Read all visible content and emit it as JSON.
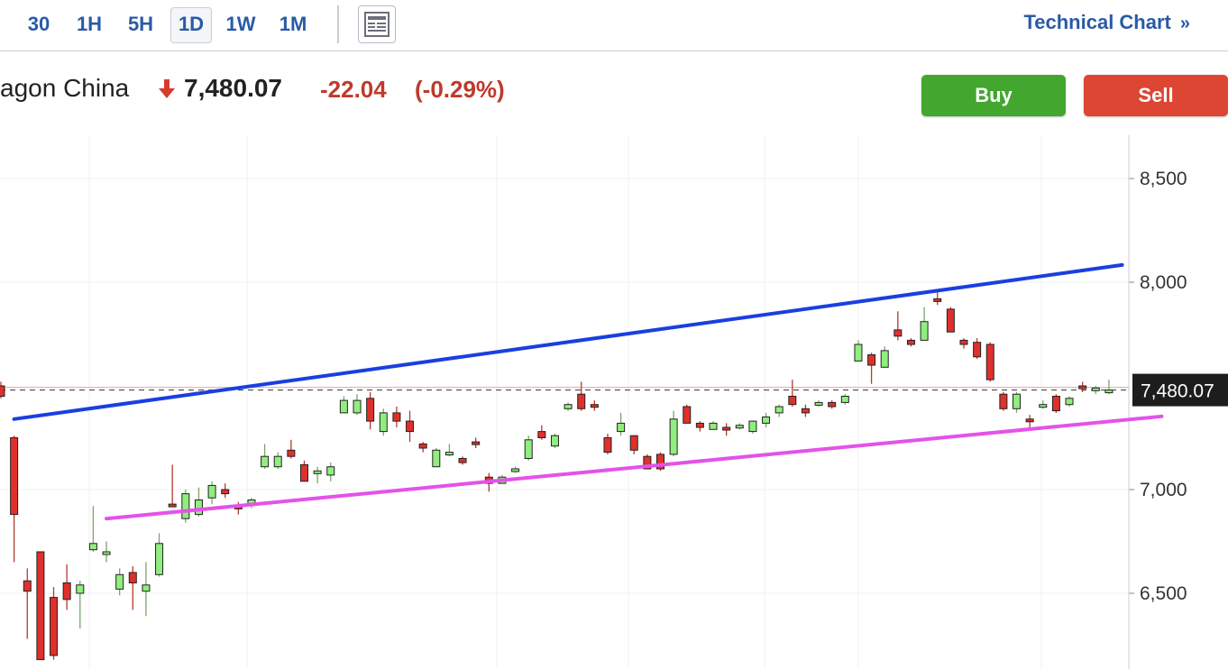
{
  "toolbar": {
    "timeframes": [
      "30",
      "1H",
      "5H",
      "1D",
      "1W",
      "1M"
    ],
    "active_timeframe": "1D",
    "technical_chart_label": "Technical Chart",
    "technical_chart_chevron": "»"
  },
  "quote": {
    "name": "agon China",
    "direction_icon": "arrow-down-icon",
    "price": "7,480.07",
    "change": "-22.04",
    "change_pct": "(-0.29%)"
  },
  "actions": {
    "buy_label": "Buy",
    "sell_label": "Sell"
  },
  "colors": {
    "up_candle": "#90ee7e",
    "down_candle": "#e0302c",
    "upper_trendline": "#1a3fe0",
    "lower_trendline": "#e452e8",
    "link_blue": "#2a5aa6",
    "negative": "#c0392b",
    "buy": "#43a62e",
    "sell": "#dd4633"
  },
  "chart_data": {
    "type": "candlestick",
    "current_price_label": "7,480.07",
    "current_price": 7480.07,
    "y_ticks": [
      "8,500",
      "8,000",
      "7,000",
      "6,500"
    ],
    "y_tick_values": [
      8500,
      8000,
      7000,
      6500
    ],
    "ylim": [
      6180,
      8690
    ],
    "grid": true,
    "candles": [
      [
        7500,
        7450,
        7520,
        7440
      ],
      [
        7250,
        6880,
        7260,
        6650
      ],
      [
        6560,
        6510,
        6620,
        6280
      ],
      [
        6700,
        6180,
        6700,
        6180
      ],
      [
        6480,
        6200,
        6530,
        6180
      ],
      [
        6550,
        6470,
        6640,
        6420
      ],
      [
        6500,
        6540,
        6560,
        6330
      ],
      [
        6710,
        6740,
        6920,
        6700
      ],
      [
        6690,
        6700,
        6750,
        6650
      ],
      [
        6520,
        6590,
        6620,
        6490
      ],
      [
        6600,
        6550,
        6630,
        6420
      ],
      [
        6510,
        6540,
        6650,
        6390
      ],
      [
        6590,
        6740,
        6790,
        6580
      ],
      [
        6930,
        6920,
        7120,
        6930
      ],
      [
        6860,
        6980,
        7000,
        6840
      ],
      [
        6880,
        6950,
        7010,
        6870
      ],
      [
        6960,
        7020,
        7040,
        6930
      ],
      [
        7000,
        6980,
        7030,
        6960
      ],
      [
        6920,
        6910,
        6940,
        6880
      ],
      [
        6930,
        6950,
        6960,
        6910
      ],
      [
        7110,
        7160,
        7220,
        7100
      ],
      [
        7110,
        7160,
        7180,
        7100
      ],
      [
        7190,
        7160,
        7240,
        7150
      ],
      [
        7120,
        7040,
        7140,
        7040
      ],
      [
        7080,
        7090,
        7110,
        7030
      ],
      [
        7070,
        7110,
        7130,
        7040
      ],
      [
        7370,
        7430,
        7450,
        7370
      ],
      [
        7370,
        7430,
        7460,
        7360
      ],
      [
        7440,
        7330,
        7470,
        7290
      ],
      [
        7280,
        7370,
        7390,
        7260
      ],
      [
        7370,
        7330,
        7400,
        7300
      ],
      [
        7330,
        7280,
        7380,
        7230
      ],
      [
        7220,
        7200,
        7230,
        7180
      ],
      [
        7110,
        7190,
        7200,
        7110
      ],
      [
        7180,
        7180,
        7220,
        7160
      ],
      [
        7150,
        7130,
        7160,
        7120
      ],
      [
        7230,
        7220,
        7250,
        7200
      ],
      [
        7060,
        7030,
        7080,
        6990
      ],
      [
        7030,
        7060,
        7070,
        7030
      ],
      [
        7090,
        7100,
        7110,
        7080
      ],
      [
        7150,
        7240,
        7260,
        7140
      ],
      [
        7280,
        7250,
        7310,
        7240
      ],
      [
        7210,
        7260,
        7270,
        7200
      ],
      [
        7390,
        7410,
        7420,
        7380
      ],
      [
        7460,
        7390,
        7520,
        7380
      ],
      [
        7410,
        7400,
        7430,
        7380
      ],
      [
        7250,
        7180,
        7270,
        7170
      ],
      [
        7280,
        7320,
        7370,
        7260
      ],
      [
        7260,
        7190,
        7260,
        7170
      ],
      [
        7160,
        7100,
        7170,
        7100
      ],
      [
        7170,
        7100,
        7180,
        7090
      ],
      [
        7170,
        7340,
        7380,
        7160
      ],
      [
        7400,
        7320,
        7410,
        7320
      ],
      [
        7320,
        7300,
        7330,
        7280
      ],
      [
        7290,
        7320,
        7330,
        7290
      ],
      [
        7300,
        7290,
        7320,
        7260
      ],
      [
        7300,
        7310,
        7320,
        7290
      ],
      [
        7280,
        7330,
        7330,
        7270
      ],
      [
        7320,
        7350,
        7370,
        7300
      ],
      [
        7370,
        7400,
        7410,
        7350
      ],
      [
        7450,
        7410,
        7530,
        7400
      ],
      [
        7390,
        7370,
        7410,
        7350
      ],
      [
        7410,
        7420,
        7430,
        7400
      ],
      [
        7420,
        7400,
        7430,
        7390
      ],
      [
        7420,
        7450,
        7460,
        7410
      ],
      [
        7620,
        7700,
        7720,
        7620
      ],
      [
        7650,
        7600,
        7660,
        7510
      ],
      [
        7590,
        7670,
        7690,
        7590
      ],
      [
        7770,
        7740,
        7860,
        7720
      ],
      [
        7720,
        7700,
        7730,
        7690
      ],
      [
        7720,
        7810,
        7880,
        7720
      ],
      [
        7920,
        7910,
        7950,
        7890
      ],
      [
        7870,
        7760,
        7880,
        7760
      ],
      [
        7720,
        7700,
        7730,
        7680
      ],
      [
        7710,
        7640,
        7730,
        7630
      ],
      [
        7700,
        7530,
        7710,
        7520
      ],
      [
        7460,
        7390,
        7470,
        7380
      ],
      [
        7390,
        7460,
        7470,
        7370
      ],
      [
        7340,
        7330,
        7360,
        7300
      ],
      [
        7400,
        7410,
        7430,
        7390
      ],
      [
        7450,
        7380,
        7460,
        7370
      ],
      [
        7410,
        7440,
        7450,
        7400
      ],
      [
        7500,
        7490,
        7520,
        7470
      ],
      [
        7480,
        7490,
        7500,
        7460
      ],
      [
        7470,
        7480,
        7530,
        7460
      ]
    ],
    "trendlines": [
      {
        "color": "upper",
        "points": [
          [
            1,
            7340
          ],
          [
            85,
            8083
          ]
        ]
      },
      {
        "color": "lower",
        "points": [
          [
            8,
            6860
          ],
          [
            88,
            7353
          ]
        ]
      }
    ]
  }
}
